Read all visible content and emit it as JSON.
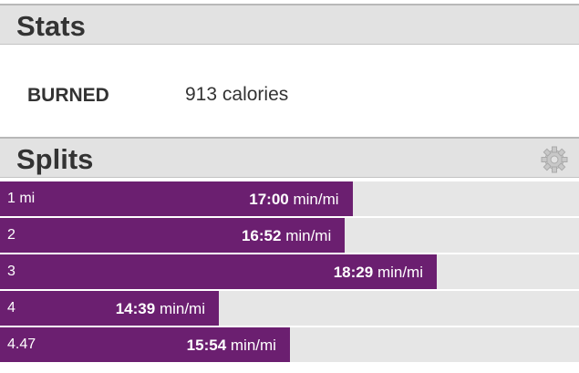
{
  "stats": {
    "title": "Stats",
    "label": "BURNED",
    "amount": 913,
    "unit": "calories"
  },
  "splits": {
    "title": "Splits",
    "rows": [
      {
        "distance": "1 mi",
        "pace": {
          "value": 17.0,
          "label": "17:00"
        },
        "unit": "min/mi"
      },
      {
        "distance": "2",
        "pace": {
          "value": 16.867,
          "label": "16:52"
        },
        "unit": "min/mi"
      },
      {
        "distance": "3",
        "pace": {
          "value": 18.483,
          "label": "18:29"
        },
        "unit": "min/mi"
      },
      {
        "distance": "4",
        "pace": {
          "value": 14.65,
          "label": "14:39"
        },
        "unit": "min/mi"
      },
      {
        "distance": "4.47",
        "pace": {
          "value": 15.9,
          "label": "15:54"
        },
        "unit": "min/mi"
      }
    ]
  }
}
